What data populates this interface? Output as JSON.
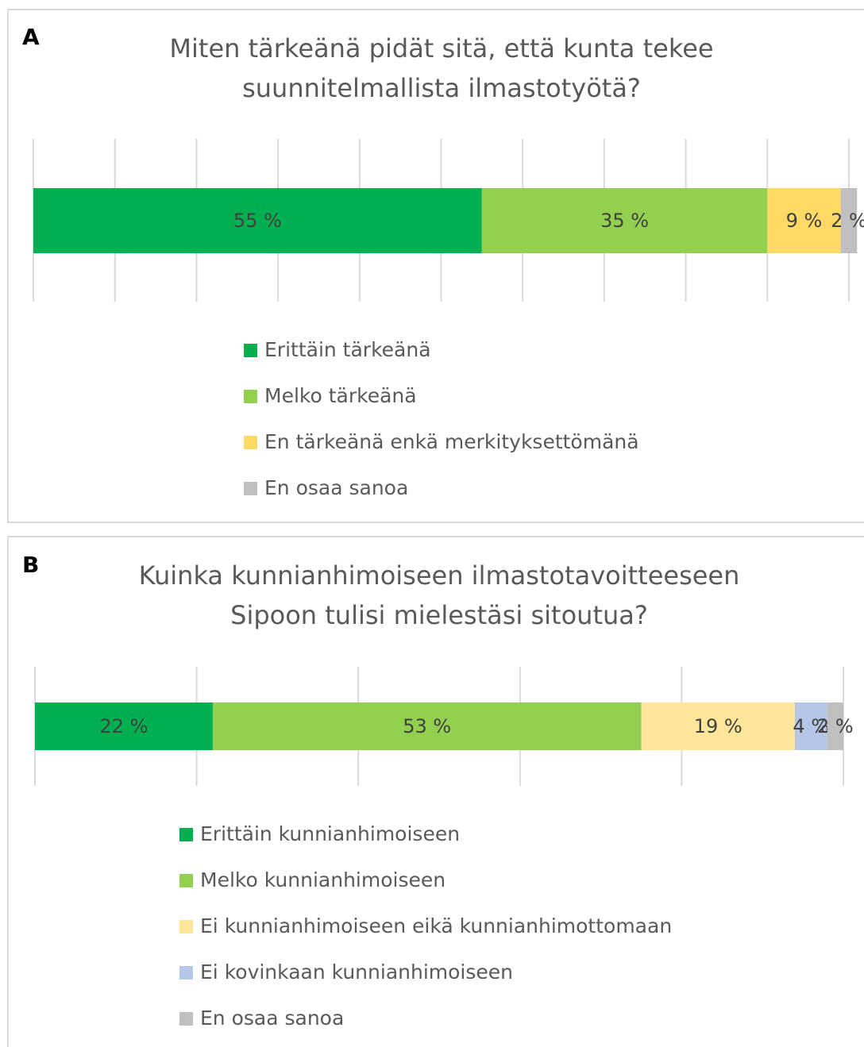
{
  "chart_data": [
    {
      "type": "bar",
      "orientation": "horizontal",
      "stacked": true,
      "panel_label": "A",
      "title": [
        "Miten tärkeänä pidät sitä, että kunta tekee",
        "suunnitelmallista ilmastotyötä?"
      ],
      "categories": [
        null
      ],
      "series": [
        {
          "name": "Erittäin tärkeänä",
          "color": "#00b050",
          "values": [
            55
          ],
          "value_labels": [
            "55 %"
          ]
        },
        {
          "name": "Melko tärkeänä",
          "color": "#92d050",
          "values": [
            35
          ],
          "value_labels": [
            "35 %"
          ]
        },
        {
          "name": "En tärkeänä enkä merkityksettömänä",
          "color": "#ffd966",
          "values": [
            9
          ],
          "value_labels": [
            "9 %"
          ]
        },
        {
          "name": "En osaa sanoa",
          "color": "#bfbfbf",
          "values": [
            2
          ],
          "value_labels": [
            "2 %"
          ]
        }
      ],
      "xlim": [
        0,
        100
      ],
      "xticks": [
        0,
        10,
        20,
        30,
        40,
        50,
        60,
        70,
        80,
        90,
        100
      ],
      "grid": true,
      "legend": "bottom"
    },
    {
      "type": "bar",
      "orientation": "horizontal",
      "stacked": true,
      "panel_label": "B",
      "title": [
        "Kuinka kunnianhimoiseen ilmastotavoitteeseen",
        "Sipoon tulisi mielestäsi sitoutua?"
      ],
      "categories": [
        null
      ],
      "series": [
        {
          "name": "Erittäin kunnianhimoiseen",
          "color": "#00b050",
          "values": [
            22
          ],
          "value_labels": [
            "22 %"
          ]
        },
        {
          "name": "Melko kunnianhimoiseen",
          "color": "#92d050",
          "values": [
            53
          ],
          "value_labels": [
            "53 %"
          ]
        },
        {
          "name": "Ei kunnianhimoiseen eikä kunnianhimottomaan",
          "color": "#ffe699",
          "values": [
            19
          ],
          "value_labels": [
            "19 %"
          ]
        },
        {
          "name": "Ei kovinkaan kunnianhimoiseen",
          "color": "#b4c7e7",
          "values": [
            4
          ],
          "value_labels": [
            "4 %"
          ]
        },
        {
          "name": "En osaa sanoa",
          "color": "#bfbfbf",
          "values": [
            2
          ],
          "value_labels": [
            "2 %"
          ]
        }
      ],
      "xlim": [
        0,
        100
      ],
      "xticks": [
        0,
        20,
        40,
        60,
        80,
        100
      ],
      "grid": true,
      "legend": "bottom"
    }
  ]
}
